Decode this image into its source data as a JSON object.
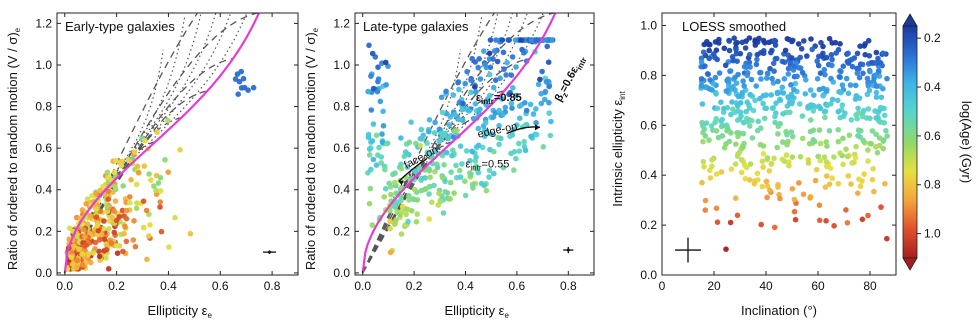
{
  "chart_data": [
    {
      "type": "scatter",
      "panel_label": "Early-type galaxies",
      "xlabel": "Ellipticity ε",
      "xlabel_sub": "e",
      "ylabel": "Ratio of ordered to random motion (V / σ)",
      "ylabel_sub": "e",
      "xlim": [
        -0.03,
        0.9
      ],
      "ylim": [
        -0.01,
        1.25
      ],
      "xticks": [
        "0.0",
        "0.2",
        "0.4",
        "0.6",
        "0.8"
      ],
      "xtick_values": [
        0.0,
        0.2,
        0.4,
        0.6,
        0.8
      ],
      "yticks": [
        "0.0",
        "0.2",
        "0.4",
        "0.6",
        "0.8",
        "1.0",
        "1.2"
      ],
      "ytick_values": [
        0.0,
        0.2,
        0.4,
        0.6,
        0.8,
        1.0,
        1.2
      ],
      "color_meaning": "log(Age) (Gyr), blue = young (0.2), red = old (1.0)",
      "points_cluster": "old-to-intermediate ages, concentrated at ε 0.0-0.5, V/σ 0.05-0.6; few blue points near (0.75, 0.97)",
      "error_bar": {
        "x": 0.79,
        "y": 0.1,
        "xerr": 0.025,
        "yerr": 0.008
      },
      "overlay": [
        "magenta edge-on isotropic curve",
        "dashed constant intrinsic ellipticity curves",
        "dotted constant inclination curves"
      ]
    },
    {
      "type": "scatter",
      "panel_label": "Late-type galaxies",
      "xlabel": "Ellipticity ε",
      "xlabel_sub": "e",
      "ylabel": "Ratio of ordered to random motion (V / σ)",
      "ylabel_sub": "e",
      "xlim": [
        -0.03,
        0.9
      ],
      "ylim": [
        -0.01,
        1.25
      ],
      "xticks": [
        "0.0",
        "0.2",
        "0.4",
        "0.6",
        "0.8"
      ],
      "xtick_values": [
        0.0,
        0.2,
        0.4,
        0.6,
        0.8
      ],
      "yticks": [
        "0.0",
        "0.2",
        "0.4",
        "0.6",
        "0.8",
        "1.0",
        "1.2"
      ],
      "ytick_values": [
        0.0,
        0.2,
        0.4,
        0.6,
        0.8,
        1.0,
        1.2
      ],
      "annotations": [
        {
          "text": "ε",
          "sub": "intr",
          "suffix": "=0.85"
        },
        {
          "text": "ε",
          "sub": "intr",
          "suffix": "=0.55"
        },
        {
          "text": "face-on"
        },
        {
          "text": "edge-on"
        },
        {
          "text": "β",
          "sub": "z",
          "suffix": "=0.6ε",
          "sub2": "intr"
        }
      ],
      "error_bar": {
        "x": 0.8,
        "y": 0.11,
        "xerr": 0.02,
        "yerr": 0.015
      },
      "points_cluster": "young blue points at high V/σ (0.4-1.1), cyan/green at lower V/σ near magenta curve"
    },
    {
      "type": "scatter",
      "panel_label": "LOESS smoothed",
      "xlabel": "Inclination (°)",
      "ylabel": "Intrinsic ellipticity ε",
      "ylabel_sub": "int",
      "xlim": [
        0,
        90
      ],
      "ylim": [
        0.0,
        1.05
      ],
      "xticks": [
        "0",
        "20",
        "40",
        "60",
        "80"
      ],
      "xtick_values": [
        0,
        20,
        40,
        60,
        80
      ],
      "yticks": [
        "0.0",
        "0.2",
        "0.4",
        "0.6",
        "0.8",
        "1.0"
      ],
      "ytick_values": [
        0.0,
        0.2,
        0.4,
        0.6,
        0.8,
        1.0
      ],
      "error_bar": {
        "x": 10,
        "y": 0.1,
        "xerr": 5,
        "yerr": 0.05
      },
      "points_cluster": "inclination 15-87°; color gradient by ε_int: red at 0.1-0.3, orange/yellow 0.3-0.5, green 0.5-0.6, cyan 0.6-0.75, blue 0.8-0.95",
      "colorbar": {
        "label": "log(Age) (Gyr)",
        "range": [
          0.15,
          1.1
        ],
        "ticks": [
          "0.2",
          "0.4",
          "0.6",
          "0.8",
          "1.0"
        ],
        "tick_values": [
          0.2,
          0.4,
          0.6,
          0.8,
          1.0
        ],
        "colors": [
          "#1a3a9e",
          "#2a6fd6",
          "#3fb6e6",
          "#59d6c8",
          "#8fd96a",
          "#e6e040",
          "#f5a53a",
          "#e0502c",
          "#a81e1e"
        ]
      }
    }
  ]
}
